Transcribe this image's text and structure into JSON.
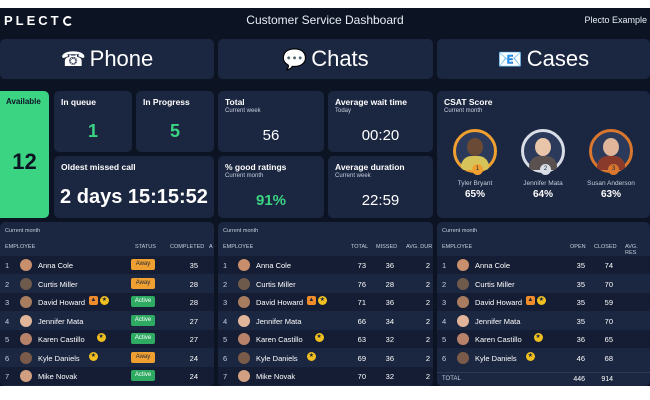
{
  "header": {
    "logo": "PLECTO",
    "title": "Customer Service Dashboard",
    "org": "Plecto Example"
  },
  "sections": {
    "phone": {
      "icon": "☎",
      "label": "Phone"
    },
    "chats": {
      "icon": "💬",
      "label": "Chats"
    },
    "cases": {
      "icon": "📧",
      "label": "Cases"
    }
  },
  "phone": {
    "available": {
      "label": "Available",
      "value": "12"
    },
    "in_queue": {
      "label": "In queue",
      "value": "1"
    },
    "in_progress": {
      "label": "In Progress",
      "value": "5"
    },
    "oldest_missed": {
      "label": "Oldest missed call",
      "value": "2 days 15:15:52"
    }
  },
  "chats_kpis": {
    "total": {
      "label": "Total",
      "sub": "Current week",
      "value": "56"
    },
    "avg_wait": {
      "label": "Average wait time",
      "sub": "Today",
      "value": "00:20"
    },
    "good_ratings": {
      "label": "% good ratings",
      "sub": "Current month",
      "value": "91%"
    },
    "avg_duration": {
      "label": "Average duration",
      "sub": "Current week",
      "value": "22:59"
    }
  },
  "csat": {
    "label": "CSAT Score",
    "sub": "Current month",
    "people": [
      {
        "name": "Tyler Bryant",
        "pct": "65%",
        "rank": "1"
      },
      {
        "name": "Jennifer Mata",
        "pct": "64%",
        "rank": "2"
      },
      {
        "name": "Susan Anderson",
        "pct": "63%",
        "rank": "3"
      }
    ]
  },
  "phone_table": {
    "period": "Current month",
    "headers": {
      "employee": "EMPLOYEE",
      "status": "STATUS",
      "completed": "COMPLETED",
      "more": "A"
    },
    "rows": [
      {
        "n": "1",
        "name": "Anna Cole",
        "status": "Away",
        "completed": "35"
      },
      {
        "n": "2",
        "name": "Curtis Miller",
        "status": "Away",
        "completed": "28"
      },
      {
        "n": "3",
        "name": "David Howard",
        "status": "Active",
        "completed": "28"
      },
      {
        "n": "4",
        "name": "Jennifer Mata",
        "status": "Active",
        "completed": "27"
      },
      {
        "n": "5",
        "name": "Karen Castillo",
        "status": "Active",
        "completed": "27"
      },
      {
        "n": "6",
        "name": "Kyle Daniels",
        "status": "Away",
        "completed": "24"
      },
      {
        "n": "7",
        "name": "Mike Novak",
        "status": "Active",
        "completed": "24"
      }
    ]
  },
  "chats_table": {
    "period": "Current month",
    "headers": {
      "employee": "EMPLOYEE",
      "total": "TOTAL",
      "missed": "MISSED",
      "avg": "AVG. DUR"
    },
    "rows": [
      {
        "n": "1",
        "name": "Anna Cole",
        "total": "73",
        "missed": "36",
        "avg": "2"
      },
      {
        "n": "2",
        "name": "Curtis Miller",
        "total": "76",
        "missed": "28",
        "avg": "2"
      },
      {
        "n": "3",
        "name": "David Howard",
        "total": "71",
        "missed": "36",
        "avg": "2"
      },
      {
        "n": "4",
        "name": "Jennifer Mata",
        "total": "66",
        "missed": "34",
        "avg": "2"
      },
      {
        "n": "5",
        "name": "Karen Castillo",
        "total": "63",
        "missed": "32",
        "avg": "2"
      },
      {
        "n": "6",
        "name": "Kyle Daniels",
        "total": "69",
        "missed": "36",
        "avg": "2"
      },
      {
        "n": "7",
        "name": "Mike Novak",
        "total": "70",
        "missed": "32",
        "avg": "2"
      }
    ]
  },
  "cases_table": {
    "period": "Current month",
    "headers": {
      "employee": "EMPLOYEE",
      "open": "OPEN",
      "closed": "CLOSED",
      "avg": "AVG. RES"
    },
    "rows": [
      {
        "n": "1",
        "name": "Anna Cole",
        "open": "35",
        "closed": "74"
      },
      {
        "n": "2",
        "name": "Curtis Miller",
        "open": "35",
        "closed": "70"
      },
      {
        "n": "3",
        "name": "David Howard",
        "open": "35",
        "closed": "59"
      },
      {
        "n": "4",
        "name": "Jennifer Mata",
        "open": "35",
        "closed": "70"
      },
      {
        "n": "5",
        "name": "Karen Castillo",
        "open": "36",
        "closed": "65"
      },
      {
        "n": "6",
        "name": "Kyle Daniels",
        "open": "46",
        "closed": "68"
      }
    ],
    "total": {
      "label": "TOTAL",
      "open": "446",
      "closed": "914"
    }
  }
}
